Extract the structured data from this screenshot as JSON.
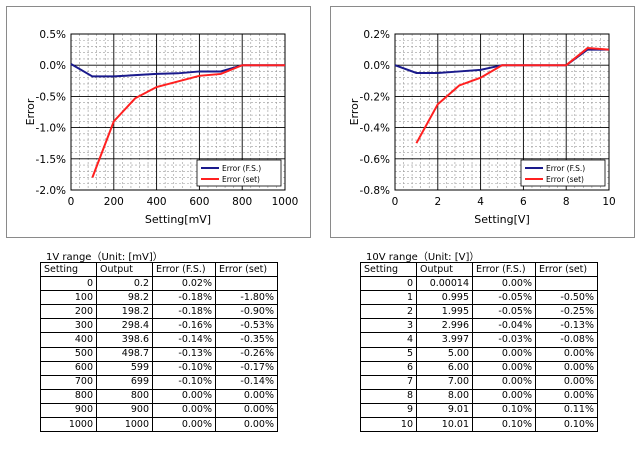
{
  "chart_data": [
    {
      "type": "line",
      "title": "",
      "xlabel": "Setting[mV]",
      "ylabel": "Error",
      "xlim": [
        0,
        1000
      ],
      "ylim": [
        -0.02,
        0.005
      ],
      "x_ticks": [
        0,
        200,
        400,
        600,
        800,
        1000
      ],
      "x_tick_labels": [
        "0",
        "200",
        "400",
        "600",
        "800",
        "1000"
      ],
      "y_ticks": [
        0.005,
        0.0,
        -0.005,
        -0.01,
        -0.015,
        -0.02
      ],
      "y_tick_labels": [
        "0.5%",
        "0.0%",
        "-0.5%",
        "-1.0%",
        "-1.5%",
        "-2.0%"
      ],
      "grid": true,
      "legend_position": "bottom-right",
      "series": [
        {
          "name": "Error (F.S.)",
          "color": "#1a1a8c",
          "x": [
            0,
            100,
            200,
            300,
            400,
            500,
            600,
            700,
            800,
            900,
            1000
          ],
          "y": [
            0.0002,
            -0.0018,
            -0.0018,
            -0.0016,
            -0.0014,
            -0.0013,
            -0.001,
            -0.001,
            0,
            0,
            0
          ]
        },
        {
          "name": "Error (set)",
          "color": "#ff2020",
          "x": [
            100,
            200,
            300,
            400,
            500,
            600,
            700,
            800,
            900,
            1000
          ],
          "y": [
            -0.018,
            -0.009,
            -0.0053,
            -0.0035,
            -0.0026,
            -0.0017,
            -0.0014,
            0,
            0,
            0
          ]
        }
      ]
    },
    {
      "type": "line",
      "title": "",
      "xlabel": "Setting[V]",
      "ylabel": "Error",
      "xlim": [
        0,
        10
      ],
      "ylim": [
        -0.008,
        0.002
      ],
      "x_ticks": [
        0,
        2,
        4,
        6,
        8,
        10
      ],
      "x_tick_labels": [
        "0",
        "2",
        "4",
        "6",
        "8",
        "10"
      ],
      "y_ticks": [
        0.002,
        0.0,
        -0.002,
        -0.004,
        -0.006,
        -0.008
      ],
      "y_tick_labels": [
        "0.2%",
        "0.0%",
        "-0.2%",
        "-0.4%",
        "-0.6%",
        "-0.8%"
      ],
      "grid": true,
      "legend_position": "bottom-right",
      "series": [
        {
          "name": "Error (F.S.)",
          "color": "#1a1a8c",
          "x": [
            0,
            1,
            2,
            3,
            4,
            5,
            6,
            7,
            8,
            9,
            10
          ],
          "y": [
            0,
            -0.0005,
            -0.0005,
            -0.0004,
            -0.0003,
            0,
            0,
            0,
            0,
            0.001,
            0.001
          ]
        },
        {
          "name": "Error (set)",
          "color": "#ff2020",
          "x": [
            1,
            2,
            3,
            4,
            5,
            6,
            7,
            8,
            9,
            10
          ],
          "y": [
            -0.005,
            -0.0025,
            -0.0013,
            -0.0008,
            0,
            0,
            0,
            0,
            0.0011,
            0.001
          ]
        }
      ]
    }
  ],
  "tables": [
    {
      "caption": "1V range（Unit: [mV]）",
      "headers": [
        "Setting",
        "Output",
        "Error (F.S.)",
        "Error (set)"
      ],
      "rows": [
        [
          "0",
          "0.2",
          "0.02%",
          ""
        ],
        [
          "100",
          "98.2",
          "-0.18%",
          "-1.80%"
        ],
        [
          "200",
          "198.2",
          "-0.18%",
          "-0.90%"
        ],
        [
          "300",
          "298.4",
          "-0.16%",
          "-0.53%"
        ],
        [
          "400",
          "398.6",
          "-0.14%",
          "-0.35%"
        ],
        [
          "500",
          "498.7",
          "-0.13%",
          "-0.26%"
        ],
        [
          "600",
          "599",
          "-0.10%",
          "-0.17%"
        ],
        [
          "700",
          "699",
          "-0.10%",
          "-0.14%"
        ],
        [
          "800",
          "800",
          "0.00%",
          "0.00%"
        ],
        [
          "900",
          "900",
          "0.00%",
          "0.00%"
        ],
        [
          "1000",
          "1000",
          "0.00%",
          "0.00%"
        ]
      ]
    },
    {
      "caption": "10V range（Unit: [V]）",
      "headers": [
        "Setting",
        "Output",
        "Error (F.S.)",
        "Error (set)"
      ],
      "rows": [
        [
          "0",
          "0.00014",
          "0.00%",
          ""
        ],
        [
          "1",
          "0.995",
          "-0.05%",
          "-0.50%"
        ],
        [
          "2",
          "1.995",
          "-0.05%",
          "-0.25%"
        ],
        [
          "3",
          "2.996",
          "-0.04%",
          "-0.13%"
        ],
        [
          "4",
          "3.997",
          "-0.03%",
          "-0.08%"
        ],
        [
          "5",
          "5.00",
          "0.00%",
          "0.00%"
        ],
        [
          "6",
          "6.00",
          "0.00%",
          "0.00%"
        ],
        [
          "7",
          "7.00",
          "0.00%",
          "0.00%"
        ],
        [
          "8",
          "8.00",
          "0.00%",
          "0.00%"
        ],
        [
          "9",
          "9.01",
          "0.10%",
          "0.11%"
        ],
        [
          "10",
          "10.01",
          "0.10%",
          "0.10%"
        ]
      ]
    }
  ]
}
